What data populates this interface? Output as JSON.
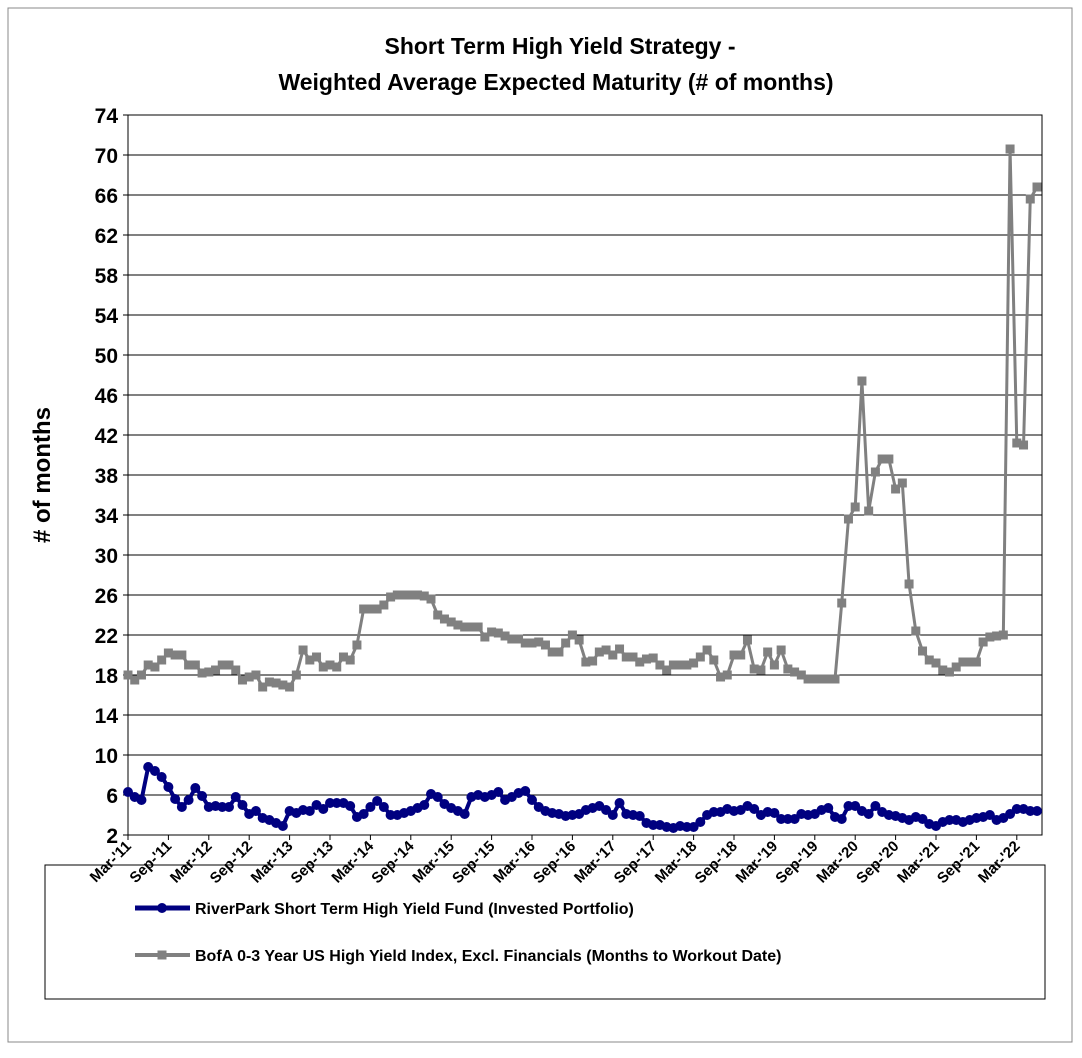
{
  "chart_data": {
    "type": "line",
    "title": [
      "Short Term High Yield Strategy -",
      "Weighted Average Expected Maturity (# of months)"
    ],
    "y_label": "# of months",
    "categories": [
      "Mar-'11",
      null,
      null,
      null,
      null,
      null,
      "Sep-'11",
      null,
      null,
      null,
      null,
      null,
      "Mar-'12",
      null,
      null,
      null,
      null,
      null,
      "Sep-'12",
      null,
      null,
      null,
      null,
      null,
      "Mar-'13",
      null,
      null,
      null,
      null,
      null,
      "Sep-'13",
      null,
      null,
      null,
      null,
      null,
      "Mar-'14",
      null,
      null,
      null,
      null,
      null,
      "Sep-'14",
      null,
      null,
      null,
      null,
      null,
      "Mar-'15",
      null,
      null,
      null,
      null,
      null,
      "Sep-'15",
      null,
      null,
      null,
      null,
      null,
      "Mar-'16",
      null,
      null,
      null,
      null,
      null,
      "Sep-'16",
      null,
      null,
      null,
      null,
      null,
      "Mar-'17",
      null,
      null,
      null,
      null,
      null,
      "Sep-'17",
      null,
      null,
      null,
      null,
      null,
      "Mar-'18",
      null,
      null,
      null,
      null,
      null,
      "Sep-'18",
      null,
      null,
      null,
      null,
      null,
      "Mar-'19",
      null,
      null,
      null,
      null,
      null,
      "Sep-'19",
      null,
      null,
      null,
      null,
      null,
      "Mar-'20",
      null,
      null,
      null,
      null,
      null,
      "Sep-'20",
      null,
      null,
      null,
      null,
      null,
      "Mar-'21",
      null,
      null,
      null,
      null,
      null,
      "Sep-'21",
      null,
      null,
      null,
      null,
      null,
      "Mar-'22",
      null,
      null,
      null
    ],
    "series": [
      {
        "name": "RiverPark Short Term High Yield Fund (Invested Portfolio)",
        "color": "#000080",
        "marker": "circle",
        "values": [
          6.3,
          5.8,
          5.5,
          8.8,
          8.4,
          7.8,
          6.8,
          5.6,
          4.8,
          5.5,
          6.7,
          5.9,
          4.8,
          4.9,
          4.8,
          4.8,
          5.8,
          5,
          4.1,
          4.4,
          3.7,
          3.5,
          3.2,
          2.9,
          4.4,
          4.2,
          4.5,
          4.4,
          5,
          4.6,
          5.2,
          5.2,
          5.2,
          4.9,
          3.8,
          4.1,
          4.8,
          5.4,
          4.8,
          4,
          4,
          4.2,
          4.4,
          4.7,
          5,
          6.1,
          5.8,
          5.1,
          4.7,
          4.4,
          4.1,
          5.8,
          6,
          5.8,
          6,
          6.3,
          5.5,
          5.8,
          6.2,
          6.4,
          5.5,
          4.8,
          4.4,
          4.2,
          4.1,
          3.9,
          4,
          4.1,
          4.5,
          4.7,
          4.9,
          4.5,
          4,
          5.2,
          4.1,
          4,
          3.9,
          3.2,
          3,
          3,
          2.8,
          2.7,
          2.9,
          2.8,
          2.8,
          3.3,
          4,
          4.3,
          4.3,
          4.6,
          4.4,
          4.5,
          4.9,
          4.6,
          4,
          4.3,
          4.2,
          3.6,
          3.6,
          3.6,
          4.1,
          4,
          4.1,
          4.5,
          4.7,
          3.8,
          3.6,
          4.9,
          4.9,
          4.4,
          4.1,
          4.9,
          4.3,
          4,
          3.9,
          3.7,
          3.5,
          3.8,
          3.6,
          3.1,
          2.9,
          3.3,
          3.5,
          3.5,
          3.3,
          3.5,
          3.7,
          3.8,
          4,
          3.5,
          3.7,
          4.1,
          4.6,
          4.6,
          4.4,
          4.4
        ]
      },
      {
        "name": "BofA 0-3 Year US High Yield Index, Excl. Financials (Months to Workout Date)",
        "color": "#808080",
        "marker": "square",
        "values": [
          18,
          17.5,
          18,
          19,
          18.8,
          19.5,
          20.2,
          20,
          20,
          19,
          19,
          18.2,
          18.3,
          18.5,
          19,
          19,
          18.5,
          17.5,
          17.8,
          18,
          16.8,
          17.3,
          17.2,
          17,
          16.8,
          18,
          20.5,
          19.5,
          19.8,
          18.8,
          19,
          18.8,
          19.8,
          19.5,
          21,
          24.6,
          24.6,
          24.6,
          25,
          25.8,
          26,
          26,
          26,
          26,
          25.9,
          25.6,
          24,
          23.6,
          23.3,
          23,
          22.8,
          22.8,
          22.8,
          21.8,
          22.3,
          22.2,
          21.9,
          21.6,
          21.6,
          21.2,
          21.2,
          21.3,
          21,
          20.3,
          20.3,
          21.2,
          22,
          21.5,
          19.3,
          19.4,
          20.3,
          20.5,
          20,
          20.6,
          19.8,
          19.8,
          19.3,
          19.6,
          19.7,
          19,
          18.5,
          19,
          19,
          19,
          19.2,
          19.8,
          20.5,
          19.5,
          17.8,
          18,
          20,
          20,
          21.5,
          18.6,
          18.5,
          20.3,
          19,
          20.5,
          18.6,
          18.3,
          18,
          17.6,
          17.6,
          17.6,
          17.6,
          17.6,
          25.2,
          33.6,
          34.8,
          47.4,
          34.4,
          38.3,
          39.6,
          39.6,
          36.6,
          37.2,
          27.1,
          22.4,
          20.4,
          19.5,
          19.2,
          18.5,
          18.3,
          18.8,
          19.3,
          19.3,
          19.3,
          21.3,
          21.8,
          21.9,
          22,
          70.6,
          41.2,
          41,
          65.6,
          66.8
        ]
      }
    ],
    "ylim": [
      2,
      74
    ],
    "yticks": [
      2,
      6,
      10,
      14,
      18,
      22,
      26,
      30,
      34,
      38,
      42,
      46,
      50,
      54,
      58,
      62,
      66,
      70,
      74
    ],
    "grid": true,
    "legend": "bottom"
  }
}
